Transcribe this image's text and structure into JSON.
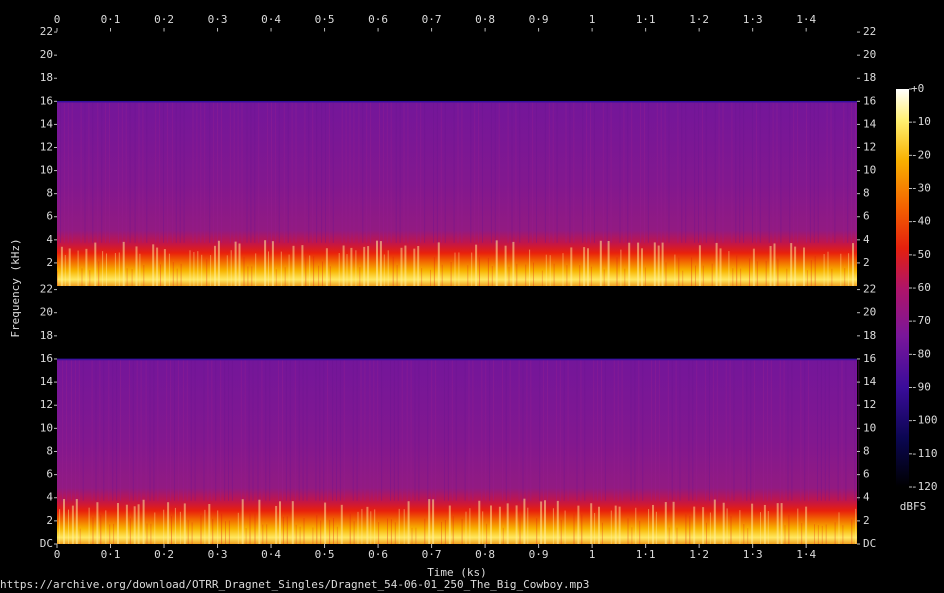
{
  "chart_data": {
    "type": "spectrogram",
    "xlabel": "Time (ks)",
    "ylabel": "Frequency (kHz)",
    "source": "https://archive.org/download/OTRR_Dragnet_Singles/Dragnet_54-06-01_250_The_Big_Cowboy.mp3",
    "xlim": [
      0,
      1.495
    ],
    "xticks": [
      0,
      {
        "value": 0.1,
        "label": "0·1"
      },
      {
        "value": 0.2,
        "label": "0·2"
      },
      {
        "value": 0.3,
        "label": "0·3"
      },
      {
        "value": 0.4,
        "label": "0·4"
      },
      {
        "value": 0.5,
        "label": "0·5"
      },
      {
        "value": 0.6,
        "label": "0·6"
      },
      {
        "value": 0.7,
        "label": "0·7"
      },
      {
        "value": 0.8,
        "label": "0·8"
      },
      {
        "value": 0.9,
        "label": "0·9"
      },
      1,
      {
        "value": 1.1,
        "label": "1·1"
      },
      {
        "value": 1.2,
        "label": "1·2"
      },
      {
        "value": 1.3,
        "label": "1·3"
      },
      {
        "value": 1.4,
        "label": "1·4"
      }
    ],
    "ylim": [
      0,
      22.05
    ],
    "panels": [
      {
        "yticks": [
          2,
          4,
          6,
          8,
          10,
          12,
          14,
          16,
          18,
          20,
          22
        ]
      },
      {
        "yticks": [
          {
            "value": 0,
            "label": "DC"
          },
          2,
          4,
          6,
          8,
          10,
          12,
          14,
          16,
          18,
          20,
          22
        ]
      }
    ],
    "colorbar": {
      "label": "dBFS",
      "lim": [
        -120,
        0
      ],
      "ticks": [
        {
          "value": 0,
          "label": "+0"
        },
        -10,
        -20,
        -30,
        -40,
        -50,
        -60,
        -70,
        -80,
        -90,
        -100,
        -110,
        -120
      ]
    }
  }
}
